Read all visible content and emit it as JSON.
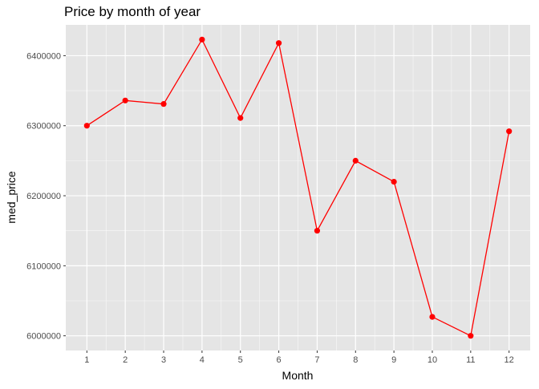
{
  "chart_data": {
    "type": "line",
    "title": "Price by month of year",
    "xlabel": "Month",
    "ylabel": "med_price",
    "x": [
      1,
      2,
      3,
      4,
      5,
      6,
      7,
      8,
      9,
      10,
      11,
      12
    ],
    "y": [
      6300000,
      6336000,
      6331000,
      6423000,
      6311000,
      6418000,
      6150000,
      6250000,
      6220000,
      6027000,
      6000000,
      6292000
    ],
    "x_ticks": [
      "1",
      "2",
      "3",
      "4",
      "5",
      "6",
      "7",
      "8",
      "9",
      "10",
      "11",
      "12"
    ],
    "y_ticks": [
      6000000,
      6100000,
      6200000,
      6300000,
      6400000
    ],
    "y_tick_labels": [
      "6000000",
      "6100000",
      "6200000",
      "6300000",
      "6400000"
    ],
    "xlim": [
      0.45,
      12.55
    ],
    "ylim": [
      5979000,
      6444000
    ],
    "grid": true,
    "legend": "none",
    "colors": {
      "line": "#ff0000",
      "point": "#ff0000",
      "panel_background": "#e5e5e5",
      "grid": "#ffffff",
      "text": "#000000",
      "tick_text": "#4d4d4d"
    }
  }
}
